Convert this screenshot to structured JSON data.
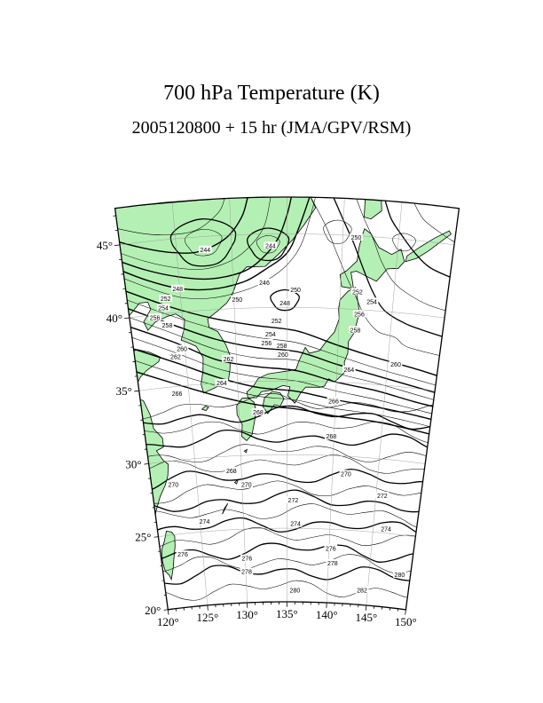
{
  "title": "700 hPa Temperature (K)",
  "subtitle": "2005120800 + 15 hr (JMA/GPV/RSM)",
  "map": {
    "lon_labels": [
      "120°",
      "125°",
      "130°",
      "135°",
      "140°",
      "145°",
      "150°"
    ],
    "lat_labels": [
      "20°",
      "25°",
      "30°",
      "35°",
      "40°",
      "45°"
    ],
    "land_color": "#b4f0b4",
    "contour_color": "#000000",
    "graticule_color": "#9a9a9a"
  },
  "contour_labels": [
    {
      "text": "244",
      "lon": 127.6,
      "lat": 44.1
    },
    {
      "text": "244",
      "lon": 133.5,
      "lat": 44.2
    },
    {
      "text": "250",
      "lon": 141.2,
      "lat": 44.9
    },
    {
      "text": "248",
      "lon": 124.8,
      "lat": 41.6
    },
    {
      "text": "252",
      "lon": 123.6,
      "lat": 41.0
    },
    {
      "text": "254",
      "lon": 123.3,
      "lat": 40.4
    },
    {
      "text": "256",
      "lon": 122.4,
      "lat": 39.8
    },
    {
      "text": "258",
      "lon": 123.5,
      "lat": 39.2
    },
    {
      "text": "246",
      "lon": 132.9,
      "lat": 41.7
    },
    {
      "text": "250",
      "lon": 130.3,
      "lat": 40.6
    },
    {
      "text": "250",
      "lon": 135.8,
      "lat": 41.2
    },
    {
      "text": "248",
      "lon": 134.8,
      "lat": 40.3
    },
    {
      "text": "252",
      "lon": 134.0,
      "lat": 39.1
    },
    {
      "text": "254",
      "lon": 133.4,
      "lat": 38.2
    },
    {
      "text": "256",
      "lon": 133.0,
      "lat": 37.6
    },
    {
      "text": "258",
      "lon": 134.5,
      "lat": 37.4
    },
    {
      "text": "260",
      "lon": 134.6,
      "lat": 36.8
    },
    {
      "text": "260",
      "lon": 124.7,
      "lat": 37.5
    },
    {
      "text": "262",
      "lon": 124.0,
      "lat": 37.0
    },
    {
      "text": "262",
      "lon": 129.2,
      "lat": 36.6
    },
    {
      "text": "264",
      "lon": 128.4,
      "lat": 35.0
    },
    {
      "text": "266",
      "lon": 123.8,
      "lat": 34.5
    },
    {
      "text": "268",
      "lon": 132.0,
      "lat": 32.9
    },
    {
      "text": "266",
      "lon": 139.8,
      "lat": 33.7
    },
    {
      "text": "264",
      "lon": 141.2,
      "lat": 35.9
    },
    {
      "text": "260",
      "lon": 145.8,
      "lat": 36.5
    },
    {
      "text": "258",
      "lon": 141.6,
      "lat": 38.6
    },
    {
      "text": "256",
      "lon": 141.9,
      "lat": 39.7
    },
    {
      "text": "254",
      "lon": 143.0,
      "lat": 40.6
    },
    {
      "text": "252",
      "lon": 141.6,
      "lat": 41.2
    },
    {
      "text": "268",
      "lon": 139.7,
      "lat": 31.3
    },
    {
      "text": "268",
      "lon": 128.9,
      "lat": 29.0
    },
    {
      "text": "270",
      "lon": 122.4,
      "lat": 28.4
    },
    {
      "text": "270",
      "lon": 130.5,
      "lat": 28.0
    },
    {
      "text": "270",
      "lon": 141.5,
      "lat": 28.8
    },
    {
      "text": "272",
      "lon": 135.7,
      "lat": 26.9
    },
    {
      "text": "272",
      "lon": 145.7,
      "lat": 27.5
    },
    {
      "text": "274",
      "lon": 125.5,
      "lat": 25.7
    },
    {
      "text": "274",
      "lon": 136.0,
      "lat": 25.3
    },
    {
      "text": "274",
      "lon": 146.5,
      "lat": 25.3
    },
    {
      "text": "276",
      "lon": 122.6,
      "lat": 23.6
    },
    {
      "text": "276",
      "lon": 130.2,
      "lat": 23.0
    },
    {
      "text": "276",
      "lon": 140.2,
      "lat": 23.7
    },
    {
      "text": "278",
      "lon": 130.1,
      "lat": 22.1
    },
    {
      "text": "278",
      "lon": 140.5,
      "lat": 22.7
    },
    {
      "text": "280",
      "lon": 136.0,
      "lat": 20.8
    },
    {
      "text": "280",
      "lon": 148.7,
      "lat": 22.3
    },
    {
      "text": "282",
      "lon": 144.3,
      "lat": 21.0
    }
  ]
}
